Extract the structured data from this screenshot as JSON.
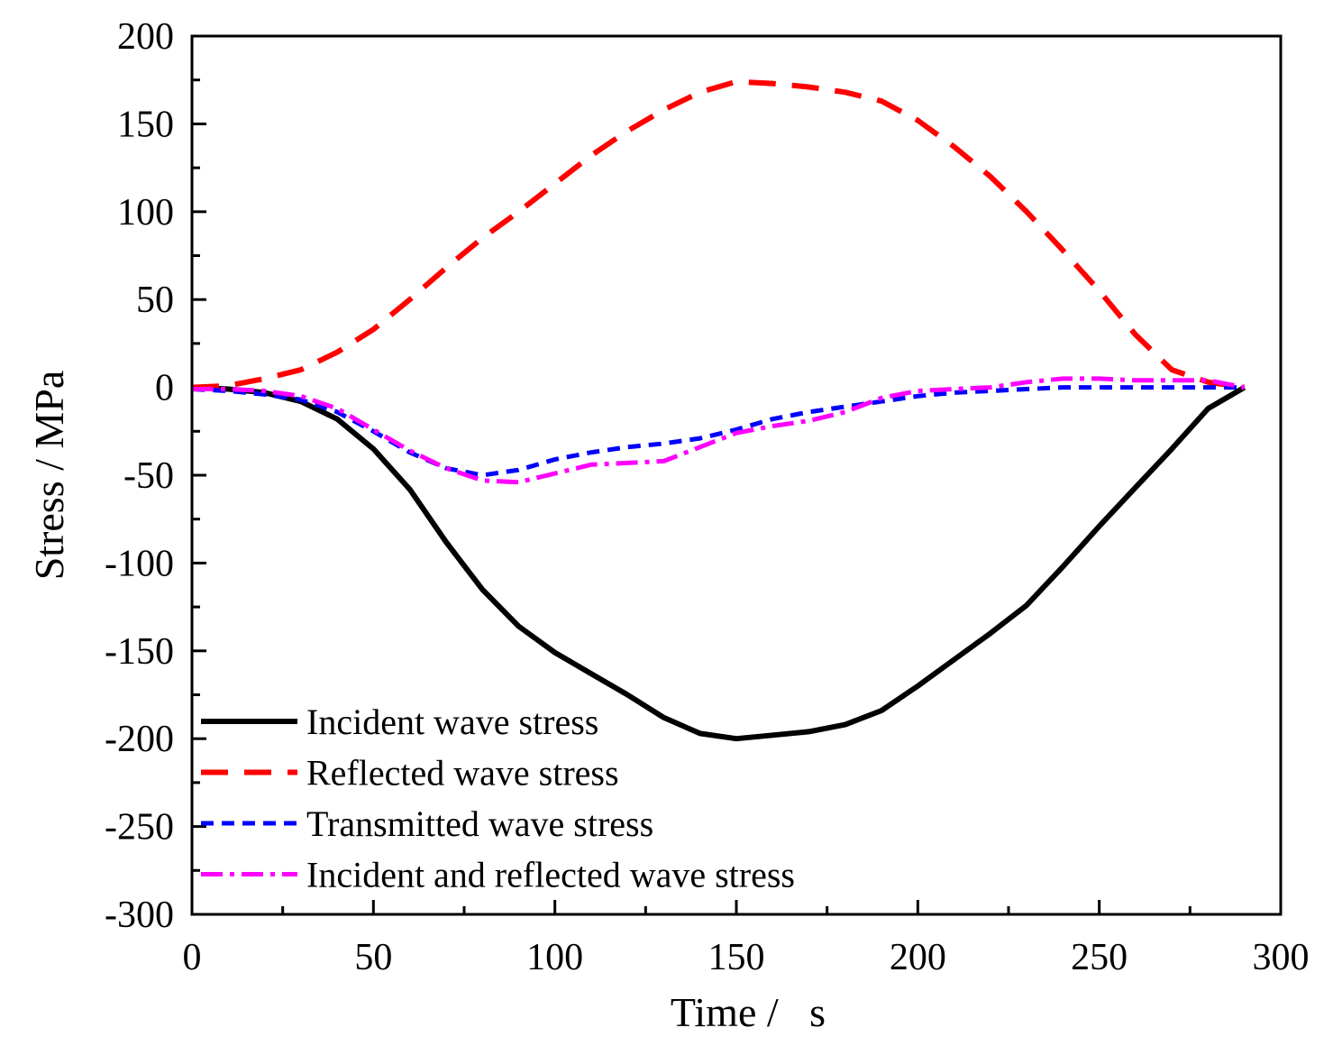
{
  "chart_data": {
    "type": "line",
    "title": "",
    "xlabel": "Time /   s",
    "ylabel": "Stress / MPa",
    "xlim": [
      0,
      300
    ],
    "ylim": [
      -300,
      200
    ],
    "xticks": [
      0,
      50,
      100,
      150,
      200,
      250,
      300
    ],
    "yticks": [
      200,
      150,
      100,
      50,
      0,
      -50,
      -100,
      -150,
      -200,
      -250,
      -300
    ],
    "grid": false,
    "legend_position": "bottom-left",
    "x": [
      0,
      10,
      20,
      30,
      40,
      50,
      60,
      70,
      80,
      90,
      100,
      110,
      120,
      130,
      140,
      150,
      160,
      170,
      180,
      190,
      200,
      210,
      220,
      230,
      240,
      250,
      260,
      270,
      280,
      290
    ],
    "series": [
      {
        "name": "Incident wave stress",
        "color": "#000000",
        "style": "solid",
        "values": [
          0,
          -1,
          -3,
          -8,
          -18,
          -35,
          -58,
          -88,
          -115,
          -136,
          -151,
          -163,
          -175,
          -188,
          -197,
          -200,
          -198,
          -196,
          -192,
          -184,
          -170,
          -155,
          -140,
          -124,
          -102,
          -79,
          -57,
          -35,
          -12,
          0
        ]
      },
      {
        "name": "Reflected wave stress",
        "color": "#ff0000",
        "style": "dash",
        "values": [
          0,
          1,
          5,
          10,
          20,
          33,
          50,
          68,
          85,
          100,
          116,
          132,
          146,
          158,
          168,
          174,
          173,
          171,
          168,
          163,
          152,
          137,
          120,
          100,
          78,
          55,
          30,
          10,
          3,
          0
        ]
      },
      {
        "name": "Transmitted wave stress",
        "color": "#0000ff",
        "style": "shortdash",
        "values": [
          -1,
          -2,
          -4,
          -7,
          -14,
          -25,
          -37,
          -46,
          -50,
          -47,
          -41,
          -37,
          -34,
          -32,
          -29,
          -24,
          -18,
          -14,
          -11,
          -8,
          -5,
          -3,
          -2,
          -1,
          0,
          0,
          0,
          0,
          0,
          0
        ]
      },
      {
        "name": "Incident and reflected wave stress",
        "color": "#ff00ff",
        "style": "dashdot",
        "values": [
          -1,
          -1,
          -2,
          -5,
          -12,
          -24,
          -36,
          -46,
          -53,
          -54,
          -49,
          -44,
          -43,
          -42,
          -34,
          -26,
          -22,
          -19,
          -14,
          -6,
          -2,
          -1,
          0,
          3,
          5,
          5,
          4,
          4,
          4,
          0
        ]
      }
    ]
  }
}
